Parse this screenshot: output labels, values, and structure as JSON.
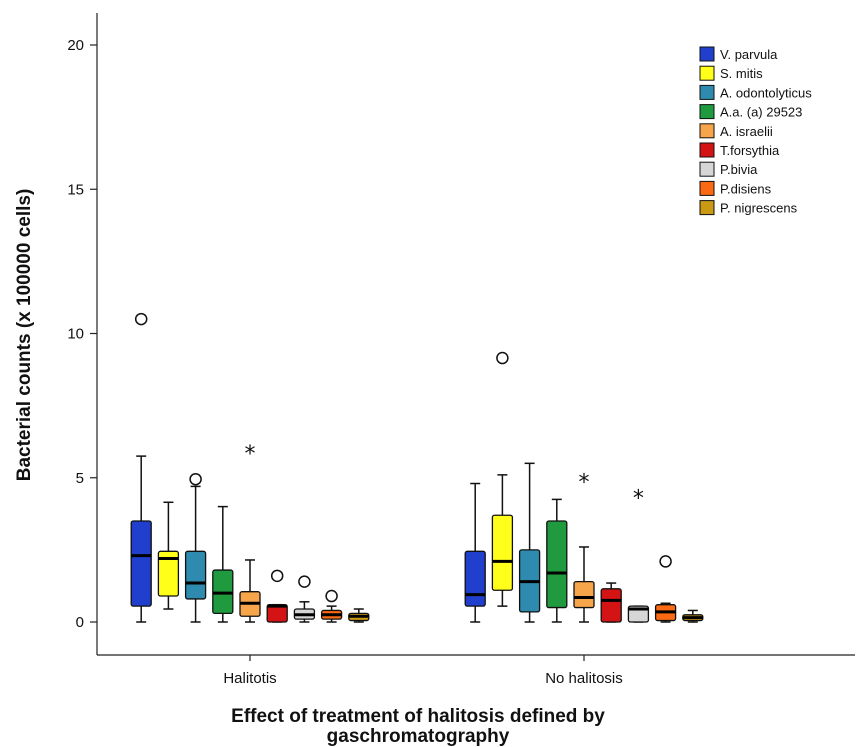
{
  "chart_data": {
    "type": "boxplot",
    "xlabel": [
      "Effect of treatment of halitosis defined by",
      "gaschromatography"
    ],
    "ylabel": "Bacterial counts (x 100000 cells)",
    "ylim": [
      -1,
      21
    ],
    "yticks": [
      0,
      5,
      10,
      15,
      20
    ],
    "grid": false,
    "legend_position": "top-right",
    "categories": [
      "Halitotis",
      "No halitosis"
    ],
    "series": [
      {
        "name": "V. parvula",
        "color": "#1f3fcc",
        "boxes": [
          {
            "min": 0,
            "q1": 0.55,
            "median": 2.3,
            "q3": 3.5,
            "max": 5.75,
            "outliers": [
              {
                "value": 10.5,
                "marker": "circle"
              }
            ]
          },
          {
            "min": 0,
            "q1": 0.55,
            "median": 0.95,
            "q3": 2.45,
            "max": 4.8,
            "outliers": []
          }
        ]
      },
      {
        "name": "S. mitis",
        "color": "#ffff1a",
        "boxes": [
          {
            "min": 0.45,
            "q1": 0.9,
            "median": 2.2,
            "q3": 2.45,
            "max": 4.15,
            "outliers": []
          },
          {
            "min": 0.55,
            "q1": 1.1,
            "median": 2.1,
            "q3": 3.7,
            "max": 5.1,
            "outliers": [
              {
                "value": 9.15,
                "marker": "circle"
              }
            ]
          }
        ]
      },
      {
        "name": "A. odontolyticus",
        "color": "#2e8aaf",
        "boxes": [
          {
            "min": 0,
            "q1": 0.8,
            "median": 1.35,
            "q3": 2.45,
            "max": 4.7,
            "outliers": [
              {
                "value": 4.95,
                "marker": "circle"
              }
            ]
          },
          {
            "min": 0,
            "q1": 0.35,
            "median": 1.4,
            "q3": 2.5,
            "max": 5.5,
            "outliers": []
          }
        ]
      },
      {
        "name": "A.a. (a) 29523",
        "color": "#1f9a3e",
        "boxes": [
          {
            "min": 0,
            "q1": 0.3,
            "median": 1.0,
            "q3": 1.8,
            "max": 4.0,
            "outliers": []
          },
          {
            "min": 0,
            "q1": 0.5,
            "median": 1.7,
            "q3": 3.5,
            "max": 4.25,
            "outliers": []
          }
        ]
      },
      {
        "name": "A. israelii",
        "color": "#f7a54a",
        "boxes": [
          {
            "min": 0,
            "q1": 0.2,
            "median": 0.65,
            "q3": 1.05,
            "max": 2.15,
            "outliers": [
              {
                "value": 5.9,
                "marker": "star"
              }
            ]
          },
          {
            "min": 0,
            "q1": 0.5,
            "median": 0.85,
            "q3": 1.4,
            "max": 2.6,
            "outliers": [
              {
                "value": 4.9,
                "marker": "star"
              }
            ]
          }
        ]
      },
      {
        "name": "T.forsythia",
        "color": "#d41414",
        "boxes": [
          {
            "min": 0,
            "q1": 0.0,
            "median": 0.55,
            "q3": 0.6,
            "max": 0.6,
            "outliers": [
              {
                "value": 1.6,
                "marker": "circle"
              }
            ]
          },
          {
            "min": 0,
            "q1": 0.0,
            "median": 0.75,
            "q3": 1.15,
            "max": 1.35,
            "outliers": []
          }
        ]
      },
      {
        "name": "P.bivia",
        "color": "#d6d6d6",
        "boxes": [
          {
            "min": 0,
            "q1": 0.1,
            "median": 0.25,
            "q3": 0.45,
            "max": 0.7,
            "outliers": [
              {
                "value": 1.4,
                "marker": "circle"
              }
            ]
          },
          {
            "min": 0,
            "q1": 0.0,
            "median": 0.45,
            "q3": 0.55,
            "max": 0.55,
            "outliers": [
              {
                "value": 4.35,
                "marker": "star"
              }
            ]
          }
        ]
      },
      {
        "name": "P.disiens",
        "color": "#fb6a12",
        "boxes": [
          {
            "min": 0,
            "q1": 0.1,
            "median": 0.25,
            "q3": 0.4,
            "max": 0.55,
            "outliers": [
              {
                "value": 0.9,
                "marker": "circle"
              }
            ]
          },
          {
            "min": 0,
            "q1": 0.05,
            "median": 0.35,
            "q3": 0.6,
            "max": 0.65,
            "outliers": [
              {
                "value": 2.1,
                "marker": "circle"
              }
            ]
          }
        ]
      },
      {
        "name": "P. nigrescens",
        "color": "#c99a12",
        "boxes": [
          {
            "min": 0,
            "q1": 0.05,
            "median": 0.2,
            "q3": 0.3,
            "max": 0.45,
            "outliers": []
          },
          {
            "min": 0,
            "q1": 0.05,
            "median": 0.15,
            "q3": 0.25,
            "max": 0.4,
            "outliers": []
          }
        ]
      }
    ]
  }
}
